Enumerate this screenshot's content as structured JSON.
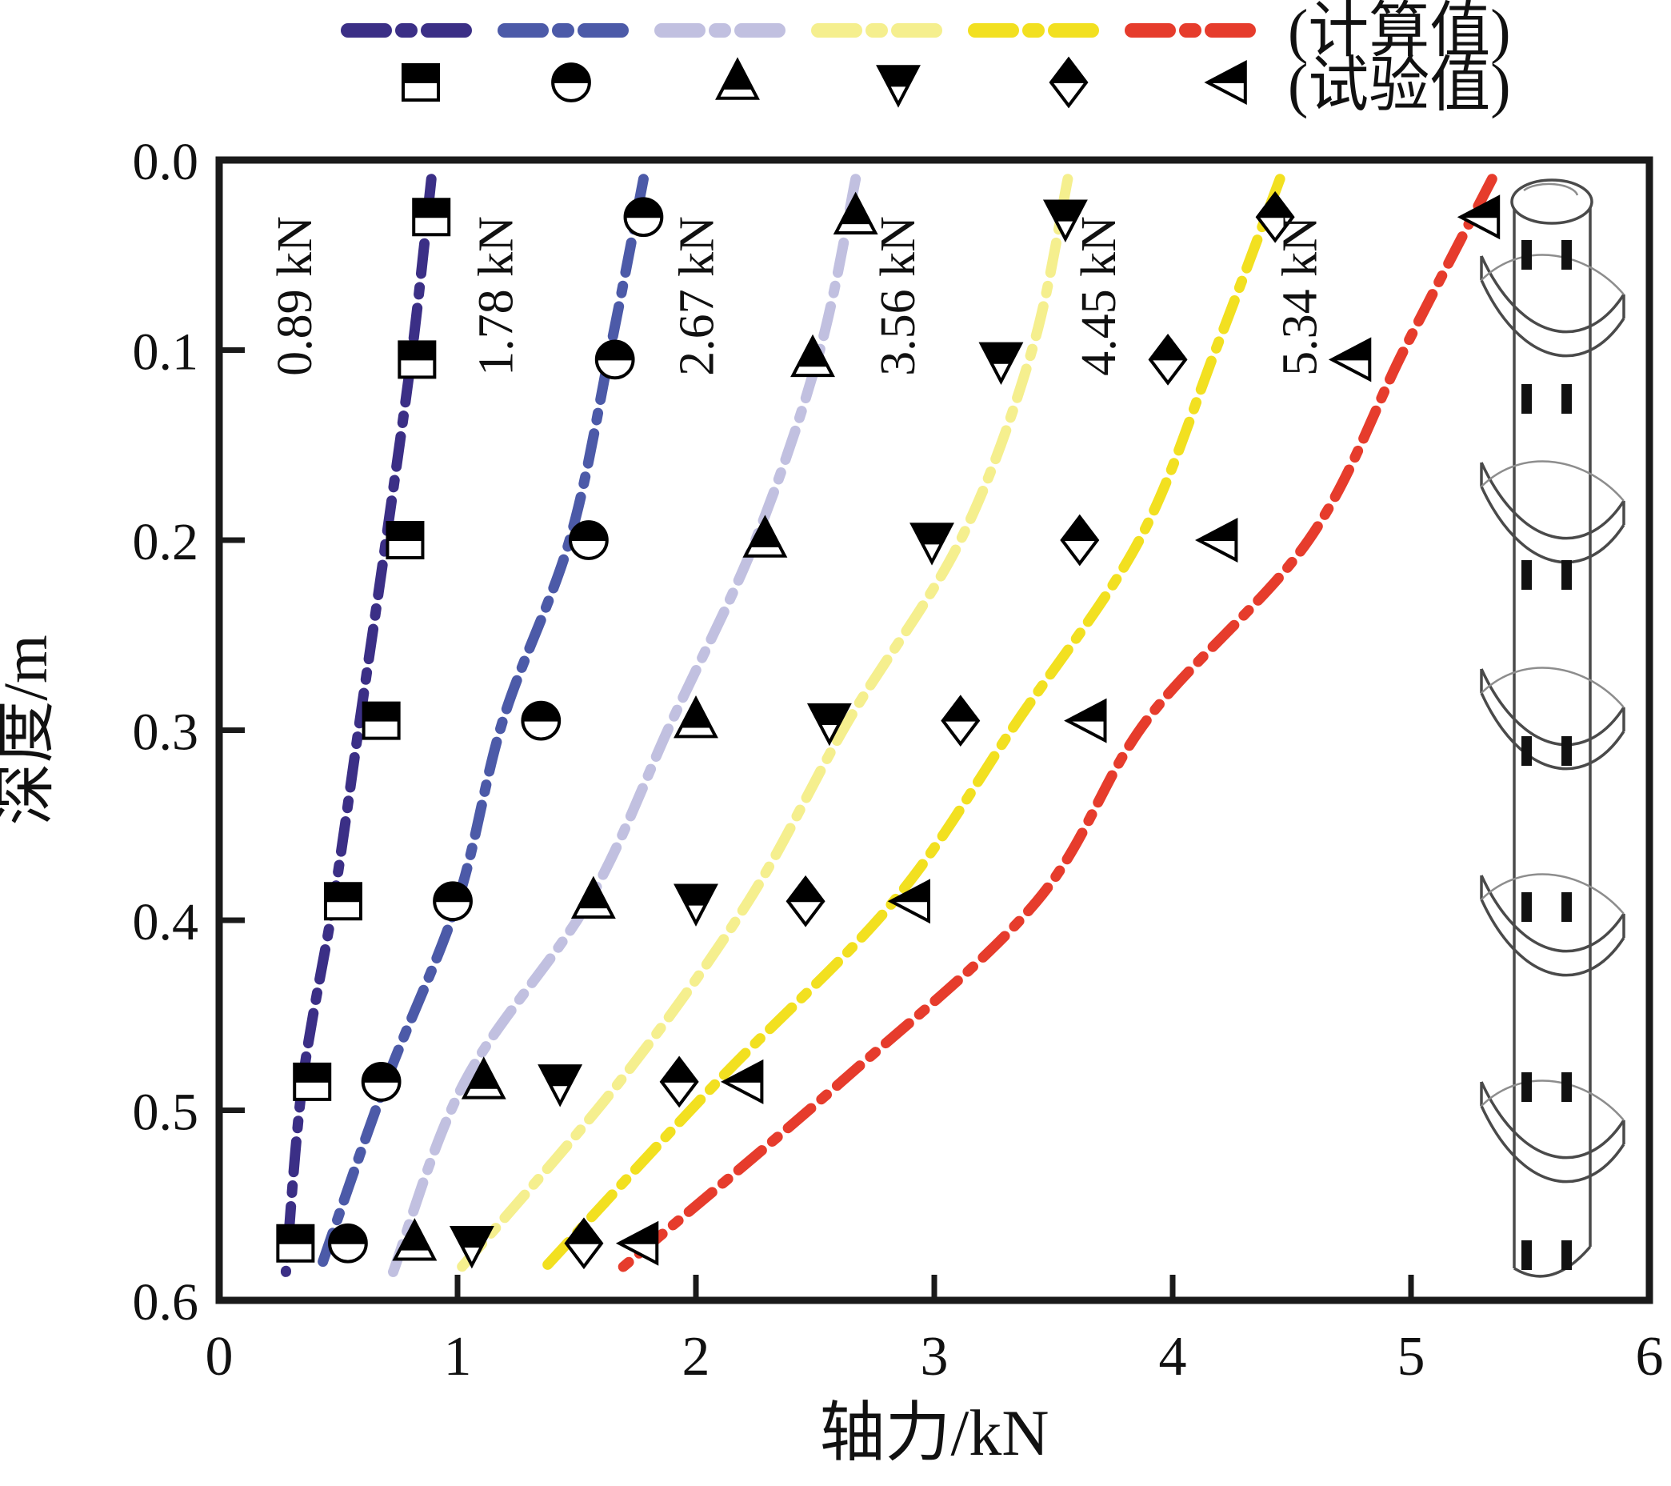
{
  "figure": {
    "xlabel": "轴力/kN",
    "ylabel": "深度/m",
    "legend": {
      "calculated_label": "(计算值)",
      "measured_label": "(试验值)"
    },
    "pile_illustration": "helical-pile-with-strain-gauges"
  },
  "chart_data": {
    "type": "line+scatter",
    "title": "",
    "xlabel": "轴力/kN",
    "ylabel": "深度/m",
    "xlim": [
      0,
      6
    ],
    "ylim": [
      0,
      0.6
    ],
    "y_inverted": true,
    "grid": false,
    "x_ticks": [
      "0",
      "1",
      "2",
      "3",
      "4",
      "5",
      "6"
    ],
    "y_ticks": [
      "0.0",
      "0.1",
      "0.2",
      "0.3",
      "0.4",
      "0.5",
      "0.6"
    ],
    "legend": {
      "calculated_label": "(计算值)",
      "measured_label": "(试验值)",
      "position": "top"
    },
    "measured_depths_m": [
      0.03,
      0.105,
      0.2,
      0.295,
      0.39,
      0.485,
      0.57
    ],
    "calculated_depths_m": [
      0.01,
      0.1,
      0.2,
      0.295,
      0.39,
      0.485,
      0.585
    ],
    "series": [
      {
        "load_label": "0.89 kN",
        "color": "#3b2f86",
        "marker": "half-filled-square",
        "measured_force_kN": [
          0.89,
          0.83,
          0.78,
          0.68,
          0.52,
          0.39,
          0.32
        ],
        "calculated_force_kN": [
          0.89,
          0.81,
          0.7,
          0.59,
          0.48,
          0.35,
          0.28
        ]
      },
      {
        "load_label": "1.78 kN",
        "color": "#4c5aa8",
        "marker": "half-filled-circle",
        "measured_force_kN": [
          1.78,
          1.66,
          1.55,
          1.35,
          0.98,
          0.68,
          0.54
        ],
        "calculated_force_kN": [
          1.78,
          1.64,
          1.47,
          1.19,
          1.0,
          0.7,
          0.42
        ]
      },
      {
        "load_label": "2.67 kN",
        "color": "#c1c0e0",
        "marker": "half-filled-triangle-up",
        "measured_force_kN": [
          2.67,
          2.49,
          2.29,
          2.0,
          1.57,
          1.11,
          0.82
        ],
        "calculated_force_kN": [
          2.67,
          2.52,
          2.25,
          1.9,
          1.55,
          1.03,
          0.73
        ]
      },
      {
        "load_label": "3.56 kN",
        "color": "#f5ef8e",
        "marker": "half-filled-triangle-down",
        "measured_force_kN": [
          3.55,
          3.28,
          2.99,
          2.56,
          2.0,
          1.43,
          1.06
        ],
        "calculated_force_kN": [
          3.56,
          3.41,
          3.11,
          2.64,
          2.22,
          1.68,
          1.0
        ]
      },
      {
        "load_label": "4.45 kN",
        "color": "#f2e020",
        "marker": "half-filled-diamond",
        "measured_force_kN": [
          4.43,
          3.98,
          3.61,
          3.11,
          2.46,
          1.93,
          1.53
        ],
        "calculated_force_kN": [
          4.45,
          4.18,
          3.86,
          3.35,
          2.83,
          2.09,
          1.35
        ]
      },
      {
        "load_label": "5.34 kN",
        "color": "#e63c2c",
        "marker": "half-filled-triangle-left",
        "measured_force_kN": [
          5.3,
          4.76,
          4.2,
          3.65,
          2.91,
          2.21,
          1.77
        ],
        "calculated_force_kN": [
          5.34,
          4.97,
          4.57,
          3.89,
          3.43,
          2.61,
          1.67
        ]
      }
    ]
  }
}
